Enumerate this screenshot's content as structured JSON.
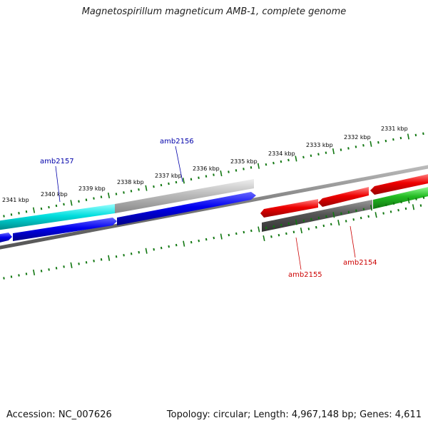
{
  "title": "Magnetospirillum magneticum AMB-1, complete genome",
  "footer": {
    "accession": "Accession: NC_007626",
    "summary": "Topology: circular; Length: 4,967,148 bp; Genes: 4,611"
  },
  "scale": {
    "unit": "kbp",
    "tick_labels": [
      "2331 kbp",
      "2332 kbp",
      "2333 kbp",
      "2334 kbp",
      "2335 kbp",
      "2336 kbp",
      "2337 kbp",
      "2338 kbp",
      "2339 kbp",
      "2340 kbp",
      "2341 kbp"
    ]
  },
  "gene_labels": [
    {
      "name": "amb2157",
      "color": "#0000aa"
    },
    {
      "name": "amb2156",
      "color": "#0000aa"
    },
    {
      "name": "amb2155",
      "color": "#cc0000"
    },
    {
      "name": "amb2154",
      "color": "#cc0000"
    }
  ],
  "colors": {
    "cyan_track": "#00dddd",
    "blue_genes": "#0000ee",
    "gray_track": "#aaaaaa",
    "dark_gray_track": "#555555",
    "red_genes": "#ee0000",
    "green_track": "#22bb22",
    "tick_green": "#117711",
    "backbone": "#777777"
  }
}
